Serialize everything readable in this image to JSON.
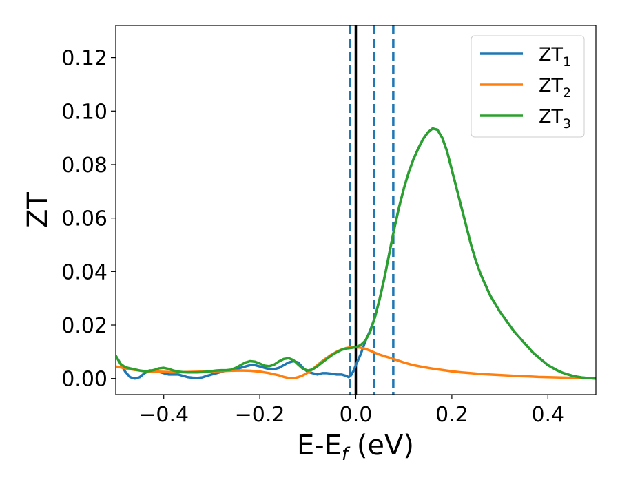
{
  "chart_data": {
    "type": "line",
    "title": "",
    "xlabel": {
      "main": "E-E",
      "sub": "f",
      "suffix": " (eV)"
    },
    "ylabel": "ZT",
    "xlim": [
      -0.5,
      0.5
    ],
    "ylim": [
      -0.006,
      0.132
    ],
    "grid": false,
    "legend_position": "top-right",
    "x_ticks": [
      {
        "value": -0.4,
        "label": "−0.4"
      },
      {
        "value": -0.2,
        "label": "−0.2"
      },
      {
        "value": 0.0,
        "label": "0.0"
      },
      {
        "value": 0.2,
        "label": "0.2"
      },
      {
        "value": 0.4,
        "label": "0.4"
      }
    ],
    "y_ticks": [
      {
        "value": 0.0,
        "label": "0.00"
      },
      {
        "value": 0.02,
        "label": "0.02"
      },
      {
        "value": 0.04,
        "label": "0.04"
      },
      {
        "value": 0.06,
        "label": "0.06"
      },
      {
        "value": 0.08,
        "label": "0.08"
      },
      {
        "value": 0.1,
        "label": "0.10"
      },
      {
        "value": 0.12,
        "label": "0.12"
      }
    ],
    "vertical_lines": [
      {
        "x": 0.0,
        "style": "solid",
        "color": "#000000"
      },
      {
        "x": -0.012,
        "style": "dashed",
        "color": "#1f77b4"
      },
      {
        "x": 0.038,
        "style": "dashed",
        "color": "#1f77b4"
      },
      {
        "x": 0.078,
        "style": "dashed",
        "color": "#1f77b4"
      }
    ],
    "series": [
      {
        "name": "ZT",
        "sub": "1",
        "color": "#1f77b4",
        "points": [
          [
            -0.5,
            0.0085
          ],
          [
            -0.49,
            0.0055
          ],
          [
            -0.48,
            0.0025
          ],
          [
            -0.47,
            0.0005
          ],
          [
            -0.46,
            0.0
          ],
          [
            -0.45,
            0.0005
          ],
          [
            -0.44,
            0.002
          ],
          [
            -0.43,
            0.003
          ],
          [
            -0.42,
            0.003
          ],
          [
            -0.41,
            0.0025
          ],
          [
            -0.4,
            0.002
          ],
          [
            -0.39,
            0.0015
          ],
          [
            -0.38,
            0.0015
          ],
          [
            -0.37,
            0.0015
          ],
          [
            -0.36,
            0.001
          ],
          [
            -0.35,
            0.0005
          ],
          [
            -0.34,
            0.0003
          ],
          [
            -0.33,
            0.0002
          ],
          [
            -0.32,
            0.0004
          ],
          [
            -0.31,
            0.001
          ],
          [
            -0.3,
            0.0015
          ],
          [
            -0.29,
            0.002
          ],
          [
            -0.28,
            0.0025
          ],
          [
            -0.27,
            0.003
          ],
          [
            -0.26,
            0.003
          ],
          [
            -0.25,
            0.0035
          ],
          [
            -0.24,
            0.004
          ],
          [
            -0.23,
            0.0045
          ],
          [
            -0.22,
            0.005
          ],
          [
            -0.21,
            0.005
          ],
          [
            -0.2,
            0.0045
          ],
          [
            -0.19,
            0.004
          ],
          [
            -0.18,
            0.0035
          ],
          [
            -0.17,
            0.0035
          ],
          [
            -0.16,
            0.004
          ],
          [
            -0.15,
            0.005
          ],
          [
            -0.14,
            0.006
          ],
          [
            -0.13,
            0.0065
          ],
          [
            -0.12,
            0.006
          ],
          [
            -0.11,
            0.004
          ],
          [
            -0.1,
            0.0025
          ],
          [
            -0.09,
            0.002
          ],
          [
            -0.08,
            0.0015
          ],
          [
            -0.07,
            0.002
          ],
          [
            -0.06,
            0.002
          ],
          [
            -0.05,
            0.0018
          ],
          [
            -0.04,
            0.0015
          ],
          [
            -0.03,
            0.0015
          ],
          [
            -0.02,
            0.001
          ],
          [
            -0.015,
            0.0005
          ],
          [
            -0.01,
            0.0012
          ],
          [
            -0.005,
            0.0028
          ],
          [
            0.0,
            0.005
          ],
          [
            0.01,
            0.009
          ],
          [
            0.02,
            0.014
          ],
          [
            0.03,
            0.018
          ],
          [
            0.04,
            0.023
          ],
          [
            0.05,
            0.03
          ],
          [
            0.06,
            0.038
          ],
          [
            0.07,
            0.047
          ],
          [
            0.08,
            0.056
          ],
          [
            0.09,
            0.064
          ],
          [
            0.1,
            0.071
          ],
          [
            0.11,
            0.077
          ],
          [
            0.12,
            0.082
          ],
          [
            0.13,
            0.086
          ],
          [
            0.14,
            0.0895
          ],
          [
            0.15,
            0.092
          ],
          [
            0.16,
            0.0935
          ],
          [
            0.17,
            0.093
          ],
          [
            0.18,
            0.09
          ],
          [
            0.19,
            0.085
          ],
          [
            0.2,
            0.078
          ],
          [
            0.21,
            0.071
          ],
          [
            0.22,
            0.064
          ],
          [
            0.23,
            0.057
          ],
          [
            0.24,
            0.05
          ],
          [
            0.25,
            0.044
          ],
          [
            0.26,
            0.039
          ],
          [
            0.27,
            0.035
          ],
          [
            0.28,
            0.031
          ],
          [
            0.29,
            0.028
          ],
          [
            0.3,
            0.025
          ],
          [
            0.31,
            0.0225
          ],
          [
            0.32,
            0.02
          ],
          [
            0.33,
            0.0175
          ],
          [
            0.34,
            0.0155
          ],
          [
            0.35,
            0.0135
          ],
          [
            0.36,
            0.0115
          ],
          [
            0.37,
            0.0095
          ],
          [
            0.38,
            0.008
          ],
          [
            0.39,
            0.0065
          ],
          [
            0.4,
            0.005
          ],
          [
            0.41,
            0.004
          ],
          [
            0.42,
            0.003
          ],
          [
            0.43,
            0.0022
          ],
          [
            0.44,
            0.0016
          ],
          [
            0.45,
            0.0011
          ],
          [
            0.46,
            0.0007
          ],
          [
            0.47,
            0.0004
          ],
          [
            0.48,
            0.0002
          ],
          [
            0.49,
            0.0001
          ],
          [
            0.5,
            0.0
          ]
        ]
      },
      {
        "name": "ZT",
        "sub": "2",
        "color": "#ff7f0e",
        "points": [
          [
            -0.5,
            0.0045
          ],
          [
            -0.48,
            0.0038
          ],
          [
            -0.46,
            0.0032
          ],
          [
            -0.44,
            0.0028
          ],
          [
            -0.42,
            0.0026
          ],
          [
            -0.4,
            0.0025
          ],
          [
            -0.38,
            0.0024
          ],
          [
            -0.36,
            0.0024
          ],
          [
            -0.34,
            0.0025
          ],
          [
            -0.32,
            0.0026
          ],
          [
            -0.3,
            0.0027
          ],
          [
            -0.28,
            0.0028
          ],
          [
            -0.26,
            0.0029
          ],
          [
            -0.24,
            0.003
          ],
          [
            -0.22,
            0.0029
          ],
          [
            -0.2,
            0.0026
          ],
          [
            -0.18,
            0.002
          ],
          [
            -0.16,
            0.0012
          ],
          [
            -0.15,
            0.0006
          ],
          [
            -0.14,
            0.0002
          ],
          [
            -0.13,
            0.0001
          ],
          [
            -0.12,
            0.0005
          ],
          [
            -0.11,
            0.0012
          ],
          [
            -0.1,
            0.0022
          ],
          [
            -0.09,
            0.0035
          ],
          [
            -0.08,
            0.005
          ],
          [
            -0.07,
            0.0065
          ],
          [
            -0.06,
            0.0078
          ],
          [
            -0.05,
            0.009
          ],
          [
            -0.04,
            0.01
          ],
          [
            -0.03,
            0.0108
          ],
          [
            -0.02,
            0.0114
          ],
          [
            -0.01,
            0.0117
          ],
          [
            0.0,
            0.0117
          ],
          [
            0.01,
            0.0115
          ],
          [
            0.02,
            0.0111
          ],
          [
            0.03,
            0.0104
          ],
          [
            0.04,
            0.0096
          ],
          [
            0.05,
            0.0089
          ],
          [
            0.06,
            0.0083
          ],
          [
            0.07,
            0.0078
          ],
          [
            0.08,
            0.0072
          ],
          [
            0.09,
            0.0066
          ],
          [
            0.1,
            0.006
          ],
          [
            0.12,
            0.005
          ],
          [
            0.14,
            0.0043
          ],
          [
            0.16,
            0.0037
          ],
          [
            0.18,
            0.0032
          ],
          [
            0.2,
            0.0027
          ],
          [
            0.22,
            0.0023
          ],
          [
            0.24,
            0.002
          ],
          [
            0.26,
            0.0017
          ],
          [
            0.28,
            0.0015
          ],
          [
            0.3,
            0.0013
          ],
          [
            0.32,
            0.0011
          ],
          [
            0.34,
            0.0009
          ],
          [
            0.36,
            0.0008
          ],
          [
            0.38,
            0.0006
          ],
          [
            0.4,
            0.0005
          ],
          [
            0.42,
            0.0004
          ],
          [
            0.44,
            0.0003
          ],
          [
            0.46,
            0.0002
          ],
          [
            0.48,
            0.0001
          ],
          [
            0.5,
            0.0001
          ]
        ]
      },
      {
        "name": "ZT",
        "sub": "3",
        "color": "#2ca02c",
        "points": [
          [
            -0.5,
            0.0085
          ],
          [
            -0.49,
            0.0055
          ],
          [
            -0.48,
            0.0042
          ],
          [
            -0.47,
            0.0038
          ],
          [
            -0.46,
            0.0034
          ],
          [
            -0.45,
            0.003
          ],
          [
            -0.44,
            0.0027
          ],
          [
            -0.43,
            0.0028
          ],
          [
            -0.42,
            0.0032
          ],
          [
            -0.41,
            0.0038
          ],
          [
            -0.4,
            0.004
          ],
          [
            -0.39,
            0.0036
          ],
          [
            -0.38,
            0.003
          ],
          [
            -0.37,
            0.0026
          ],
          [
            -0.36,
            0.0024
          ],
          [
            -0.35,
            0.0023
          ],
          [
            -0.34,
            0.0023
          ],
          [
            -0.33,
            0.0023
          ],
          [
            -0.32,
            0.0024
          ],
          [
            -0.31,
            0.0026
          ],
          [
            -0.3,
            0.0028
          ],
          [
            -0.29,
            0.003
          ],
          [
            -0.28,
            0.0031
          ],
          [
            -0.27,
            0.0031
          ],
          [
            -0.26,
            0.0033
          ],
          [
            -0.25,
            0.004
          ],
          [
            -0.24,
            0.005
          ],
          [
            -0.23,
            0.006
          ],
          [
            -0.22,
            0.0065
          ],
          [
            -0.21,
            0.0063
          ],
          [
            -0.2,
            0.0056
          ],
          [
            -0.19,
            0.0048
          ],
          [
            -0.18,
            0.0046
          ],
          [
            -0.17,
            0.0052
          ],
          [
            -0.16,
            0.0064
          ],
          [
            -0.15,
            0.0073
          ],
          [
            -0.14,
            0.0076
          ],
          [
            -0.13,
            0.0069
          ],
          [
            -0.12,
            0.0052
          ],
          [
            -0.11,
            0.0036
          ],
          [
            -0.1,
            0.003
          ],
          [
            -0.09,
            0.0034
          ],
          [
            -0.08,
            0.0046
          ],
          [
            -0.07,
            0.006
          ],
          [
            -0.06,
            0.0074
          ],
          [
            -0.05,
            0.0087
          ],
          [
            -0.04,
            0.0098
          ],
          [
            -0.03,
            0.0107
          ],
          [
            -0.02,
            0.0112
          ],
          [
            -0.01,
            0.0114
          ],
          [
            0.0,
            0.0117
          ],
          [
            0.01,
            0.0125
          ],
          [
            0.02,
            0.0142
          ],
          [
            0.03,
            0.0175
          ],
          [
            0.04,
            0.023
          ],
          [
            0.05,
            0.03
          ],
          [
            0.06,
            0.038
          ],
          [
            0.07,
            0.047
          ],
          [
            0.08,
            0.056
          ],
          [
            0.09,
            0.064
          ],
          [
            0.1,
            0.071
          ],
          [
            0.11,
            0.077
          ],
          [
            0.12,
            0.082
          ],
          [
            0.13,
            0.086
          ],
          [
            0.14,
            0.0895
          ],
          [
            0.15,
            0.092
          ],
          [
            0.16,
            0.0935
          ],
          [
            0.17,
            0.093
          ],
          [
            0.18,
            0.09
          ],
          [
            0.19,
            0.085
          ],
          [
            0.2,
            0.078
          ],
          [
            0.21,
            0.071
          ],
          [
            0.22,
            0.064
          ],
          [
            0.23,
            0.057
          ],
          [
            0.24,
            0.05
          ],
          [
            0.25,
            0.044
          ],
          [
            0.26,
            0.039
          ],
          [
            0.27,
            0.035
          ],
          [
            0.28,
            0.031
          ],
          [
            0.29,
            0.028
          ],
          [
            0.3,
            0.025
          ],
          [
            0.31,
            0.0225
          ],
          [
            0.32,
            0.02
          ],
          [
            0.33,
            0.0175
          ],
          [
            0.34,
            0.0155
          ],
          [
            0.35,
            0.0135
          ],
          [
            0.36,
            0.0115
          ],
          [
            0.37,
            0.0095
          ],
          [
            0.38,
            0.008
          ],
          [
            0.39,
            0.0065
          ],
          [
            0.4,
            0.005
          ],
          [
            0.41,
            0.004
          ],
          [
            0.42,
            0.003
          ],
          [
            0.43,
            0.0022
          ],
          [
            0.44,
            0.0016
          ],
          [
            0.45,
            0.0011
          ],
          [
            0.46,
            0.0007
          ],
          [
            0.47,
            0.0004
          ],
          [
            0.48,
            0.0002
          ],
          [
            0.49,
            0.0001
          ],
          [
            0.5,
            0.0
          ]
        ]
      }
    ]
  }
}
